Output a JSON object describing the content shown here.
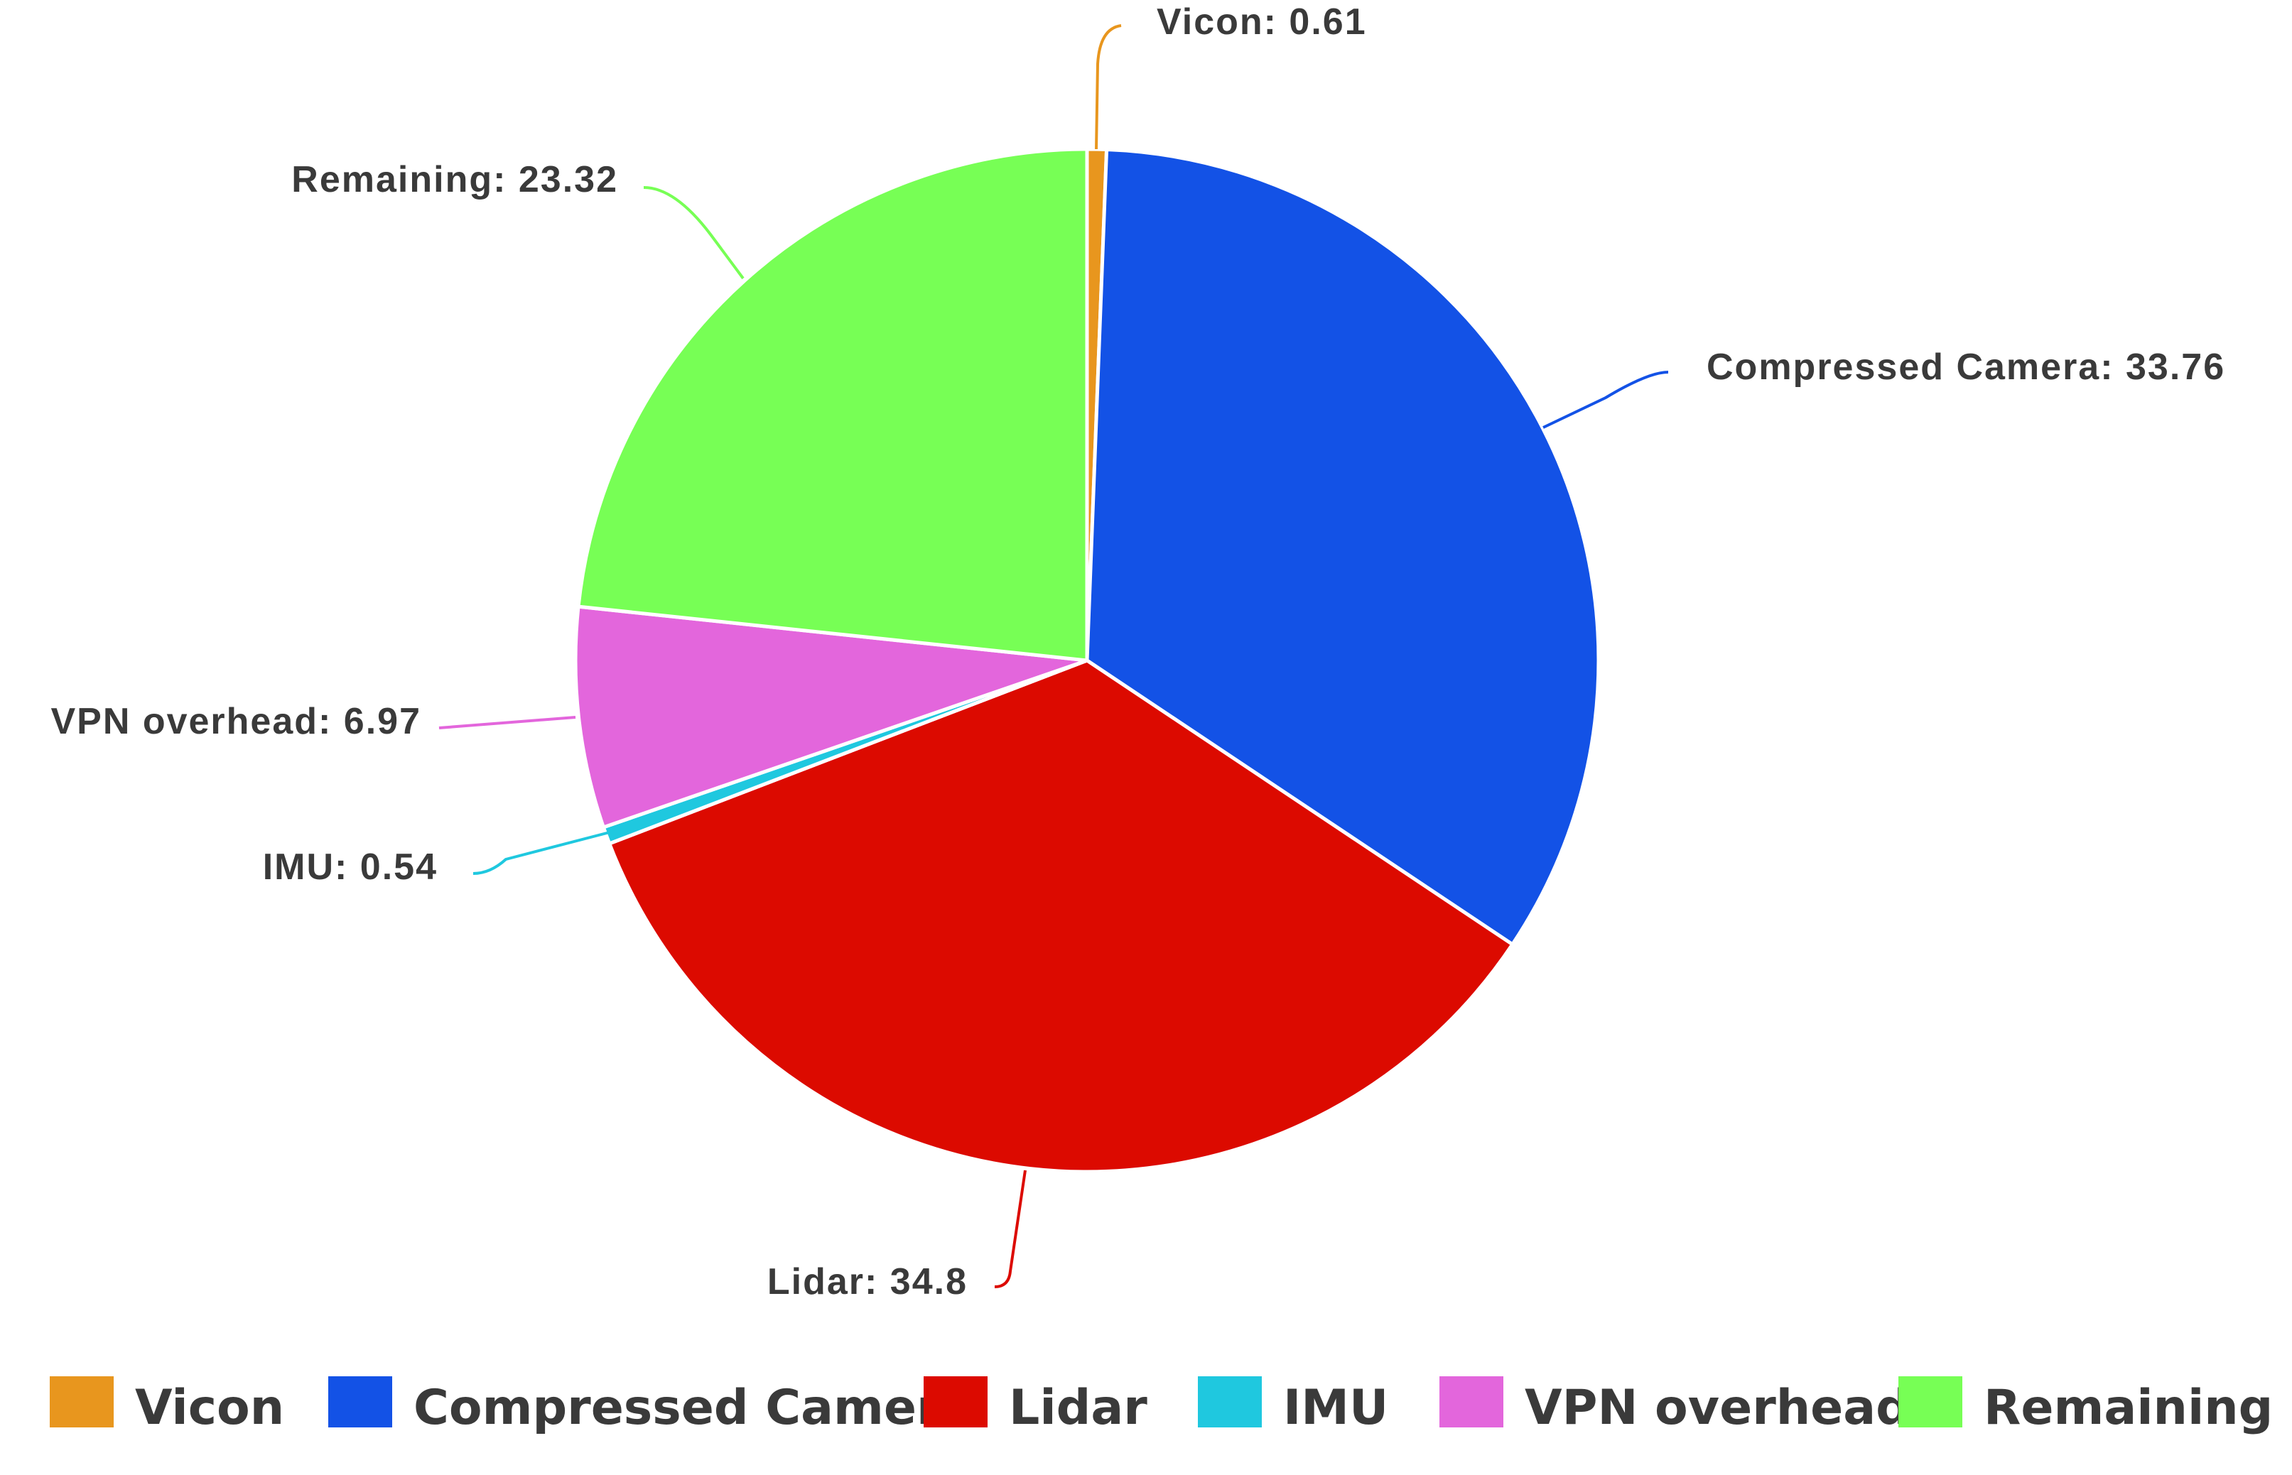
{
  "chart_data": {
    "type": "pie",
    "categories": [
      "Vicon",
      "Compressed Camera",
      "Lidar",
      "IMU",
      "VPN overhead",
      "Remaining"
    ],
    "values": [
      0.61,
      33.76,
      34.8,
      0.54,
      6.97,
      23.32
    ],
    "data_labels": [
      "Vicon: 0.61",
      "Compressed Camera: 33.76",
      "Lidar: 34.8",
      "IMU: 0.54",
      "VPN overhead: 6.97",
      "Remaining: 23.32"
    ],
    "colors": [
      "#E8961E",
      "#1352E6",
      "#DC0A00",
      "#1FC8DF",
      "#E366DC",
      "#77FF55"
    ],
    "start_angle_deg": 0,
    "direction": "clockwise",
    "legend_position": "bottom",
    "title": ""
  }
}
